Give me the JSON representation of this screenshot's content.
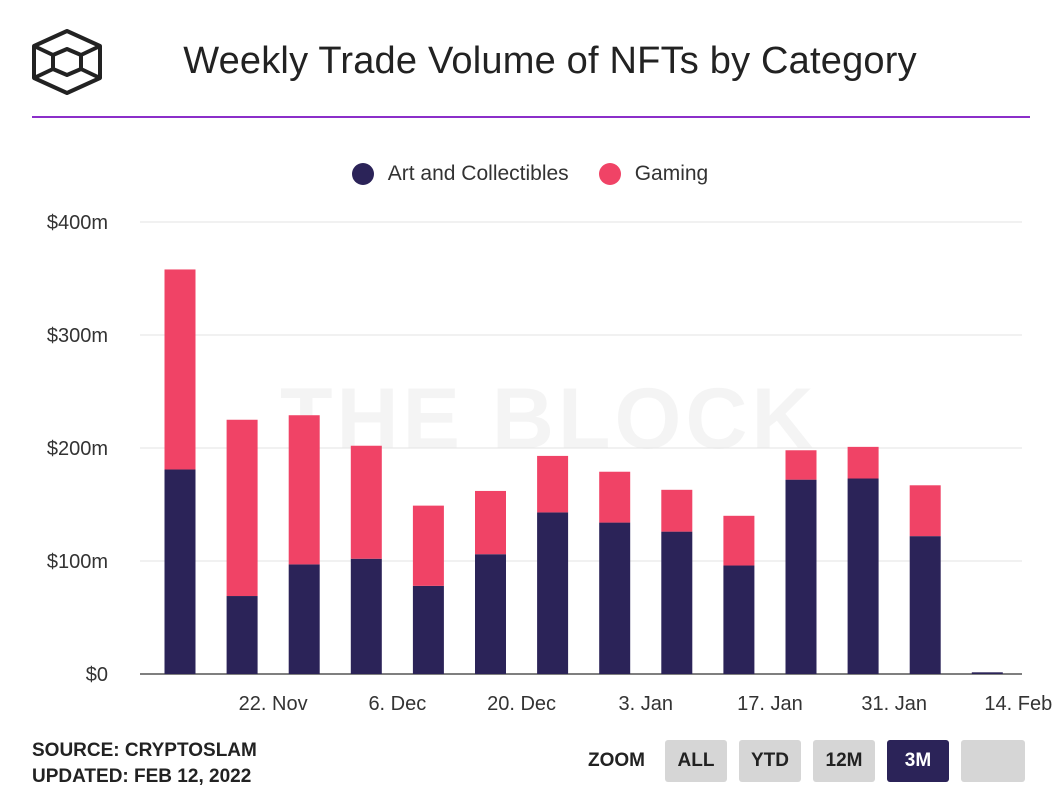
{
  "header": {
    "title": "Weekly Trade Volume of NFTs by Category",
    "logo_icon": "the-block-cube-icon"
  },
  "colors": {
    "art": "#2b2358",
    "gaming": "#f04366",
    "accent_rule": "#8b2fc9",
    "active_button": "#2b2358"
  },
  "watermark": "THE BLOCK",
  "footer": {
    "source": "SOURCE: CRYPTOSLAM",
    "updated": "UPDATED: FEB 12, 2022"
  },
  "zoom": {
    "label": "ZOOM",
    "buttons": [
      "ALL",
      "YTD",
      "12M",
      "3M",
      ""
    ],
    "active": "3M"
  },
  "chart_data": {
    "type": "bar",
    "stacked": true,
    "title": "Weekly Trade Volume of NFTs by Category",
    "xlabel": "",
    "ylabel": "",
    "ylim": [
      0,
      400
    ],
    "y_ticks": [
      "$0",
      "$100m",
      "$200m",
      "$300m",
      "$400m"
    ],
    "y_tick_values": [
      0,
      100,
      200,
      300,
      400
    ],
    "x_tick_labels": [
      "22. Nov",
      "6. Dec",
      "20. Dec",
      "3. Jan",
      "17. Jan",
      "31. Jan",
      "14. Feb"
    ],
    "x_tick_after_bar": [
      1,
      3,
      5,
      7,
      9,
      11,
      13
    ],
    "legend": {
      "placement": "top-center"
    },
    "grid": true,
    "series": [
      {
        "name": "Art and Collectibles",
        "color": "#2b2358",
        "values": [
          181,
          69,
          97,
          102,
          78,
          106,
          143,
          134,
          126,
          96,
          172,
          173,
          122,
          1.5
        ]
      },
      {
        "name": "Gaming",
        "color": "#f04366",
        "values": [
          177,
          156,
          132,
          100,
          71,
          56,
          50,
          45,
          37,
          44,
          26,
          28,
          45,
          0
        ]
      }
    ]
  }
}
